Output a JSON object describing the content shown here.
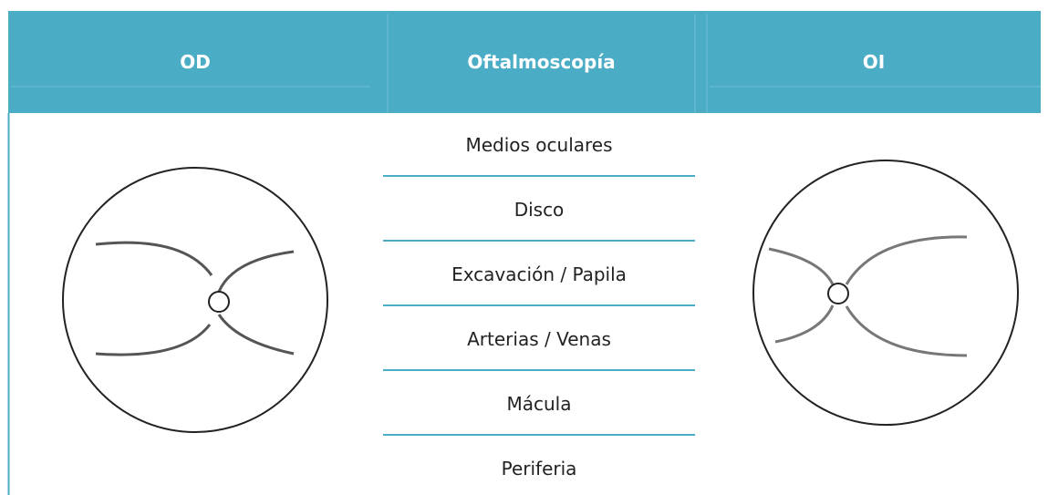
{
  "header": {
    "left": "OD",
    "center": "Oftalmoscopía",
    "right": "OI"
  },
  "rows": [
    "Medios oculares",
    "Disco",
    "Excavación / Papila",
    "Arterias / Venas",
    "Mácula",
    "Periferia"
  ]
}
